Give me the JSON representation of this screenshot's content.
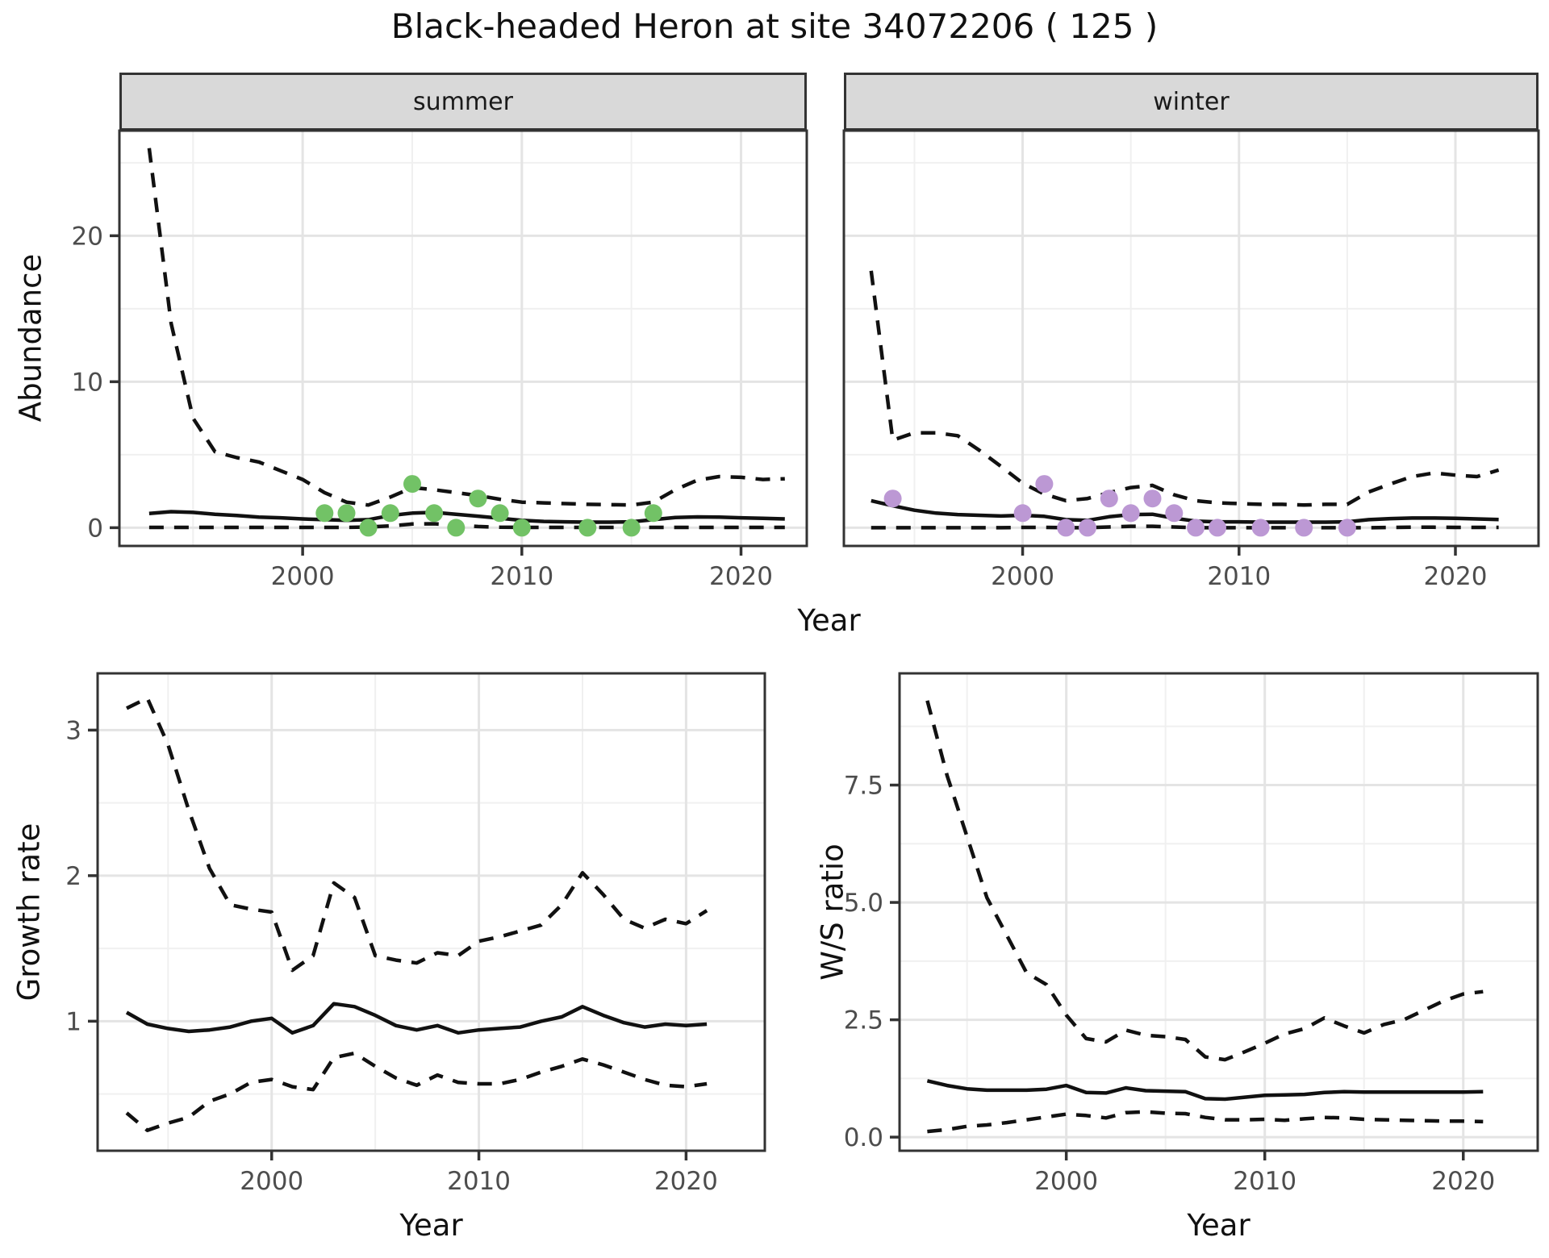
{
  "title": "Black-headed Heron at site 34072206 ( 125 )",
  "axis_labels": {
    "x": "Year",
    "y_abundance": "Abundance",
    "y_growth": "Growth rate",
    "y_ws": "W/S ratio"
  },
  "facets": {
    "summer": "summer",
    "winter": "winter"
  },
  "colors": {
    "summer_points": "#72c266",
    "winter_points": "#bc98d4",
    "line": "#111111",
    "grid_major": "#e4e4e4",
    "grid_minor": "#f0f0f0",
    "panel_border": "#333333",
    "strip_fill": "#d9d9d9",
    "tick_label": "#4d4d4d"
  },
  "chart_data": [
    {
      "id": "abundance-summer",
      "type": "line",
      "facet": "summer",
      "xlabel": "Year",
      "ylabel": "Abundance",
      "xlim": [
        1991.64,
        2023.0
      ],
      "ylim": [
        -1.25,
        27.2
      ],
      "x_ticks": [
        2000,
        2010,
        2020
      ],
      "x_tick_labels": [
        "2000",
        "2010",
        "2020"
      ],
      "x_minor": [
        1995,
        2005,
        2015
      ],
      "y_ticks": [
        0,
        10,
        20
      ],
      "y_tick_labels": [
        "0",
        "10",
        "20"
      ],
      "y_minor": [
        5,
        15,
        25
      ],
      "show_y_axis": true,
      "years": [
        1993,
        1994,
        1995,
        1996,
        1997,
        1998,
        1999,
        2000,
        2001,
        2002,
        2003,
        2004,
        2005,
        2006,
        2007,
        2008,
        2009,
        2010,
        2011,
        2012,
        2013,
        2014,
        2015,
        2016,
        2017,
        2018,
        2019,
        2020,
        2021,
        2022
      ],
      "series": [
        {
          "name": "upper-95ci",
          "style": "dashed",
          "values": [
            26.0,
            14.0,
            7.5,
            5.2,
            4.8,
            4.5,
            3.9,
            3.3,
            2.4,
            1.75,
            1.55,
            2.1,
            2.75,
            2.6,
            2.4,
            2.2,
            1.95,
            1.75,
            1.7,
            1.65,
            1.6,
            1.58,
            1.55,
            1.75,
            2.6,
            3.25,
            3.5,
            3.45,
            3.3,
            3.35
          ]
        },
        {
          "name": "lower-95ci",
          "style": "dashed",
          "values": [
            0.02,
            0.02,
            0.02,
            0.02,
            0.02,
            0.02,
            0.02,
            0.02,
            0.02,
            0.02,
            0.05,
            0.12,
            0.25,
            0.27,
            0.18,
            0.08,
            0.03,
            0.02,
            0.02,
            0.02,
            0.02,
            0.02,
            0.02,
            0.02,
            0.02,
            0.02,
            0.02,
            0.02,
            0.02,
            0.02
          ]
        },
        {
          "name": "modelled-index",
          "style": "solid",
          "values": [
            0.97,
            1.1,
            1.05,
            0.92,
            0.83,
            0.73,
            0.68,
            0.6,
            0.55,
            0.5,
            0.55,
            0.83,
            1.0,
            1.05,
            0.92,
            0.79,
            0.65,
            0.5,
            0.43,
            0.4,
            0.38,
            0.38,
            0.4,
            0.55,
            0.7,
            0.74,
            0.72,
            0.68,
            0.64,
            0.6
          ]
        }
      ],
      "points": {
        "name": "observed-counts-summer",
        "color_key": "summer_points",
        "x": [
          2001,
          2002,
          2003,
          2004,
          2005,
          2006,
          2007,
          2008,
          2009,
          2010,
          2013,
          2015,
          2016
        ],
        "y": [
          1,
          1,
          0,
          1,
          3,
          1,
          0,
          2,
          1,
          0,
          0,
          0,
          1
        ]
      }
    },
    {
      "id": "abundance-winter",
      "type": "line",
      "facet": "winter",
      "xlabel": "Year",
      "ylabel": "",
      "xlim": [
        1991.74,
        2023.84
      ],
      "ylim": [
        -1.25,
        27.2
      ],
      "x_ticks": [
        2000,
        2010,
        2020
      ],
      "x_tick_labels": [
        "2000",
        "2010",
        "2020"
      ],
      "x_minor": [
        1995,
        2005,
        2015
      ],
      "y_ticks": [
        0,
        10,
        20
      ],
      "y_tick_labels": [
        "0",
        "10",
        "20"
      ],
      "y_minor": [
        5,
        15,
        25
      ],
      "show_y_axis": false,
      "years": [
        1993,
        1994,
        1995,
        1996,
        1997,
        1998,
        1999,
        2000,
        2001,
        2002,
        2003,
        2004,
        2005,
        2006,
        2007,
        2008,
        2009,
        2010,
        2011,
        2012,
        2013,
        2014,
        2015,
        2016,
        2017,
        2018,
        2019,
        2020,
        2021,
        2022
      ],
      "series": [
        {
          "name": "upper-95ci",
          "style": "dashed",
          "values": [
            17.6,
            6.0,
            6.5,
            6.5,
            6.3,
            5.3,
            4.2,
            3.05,
            2.3,
            1.85,
            2.0,
            2.4,
            2.75,
            2.9,
            2.25,
            1.85,
            1.7,
            1.65,
            1.6,
            1.6,
            1.55,
            1.6,
            1.6,
            2.45,
            3.0,
            3.5,
            3.75,
            3.6,
            3.5,
            3.95
          ]
        },
        {
          "name": "lower-95ci",
          "style": "dashed",
          "values": [
            0.0,
            0.0,
            0.0,
            0.0,
            0.0,
            0.0,
            0.0,
            0.02,
            0.02,
            0.0,
            0.0,
            0.05,
            0.1,
            0.1,
            0.05,
            0.0,
            0.0,
            0.0,
            0.0,
            0.0,
            0.0,
            0.0,
            0.0,
            0.0,
            0.02,
            0.03,
            0.03,
            0.02,
            0.02,
            0.02
          ]
        },
        {
          "name": "modelled-index",
          "style": "solid",
          "values": [
            1.85,
            1.5,
            1.2,
            1.0,
            0.9,
            0.85,
            0.8,
            0.85,
            0.78,
            0.55,
            0.5,
            0.75,
            0.9,
            0.92,
            0.65,
            0.45,
            0.4,
            0.4,
            0.38,
            0.38,
            0.38,
            0.38,
            0.4,
            0.55,
            0.62,
            0.66,
            0.66,
            0.64,
            0.6,
            0.56
          ]
        }
      ],
      "points": {
        "name": "observed-counts-winter",
        "color_key": "winter_points",
        "x": [
          1994,
          2000,
          2001,
          2002,
          2003,
          2004,
          2005,
          2006,
          2007,
          2008,
          2009,
          2011,
          2013,
          2015
        ],
        "y": [
          2,
          1,
          3,
          0,
          0,
          2,
          1,
          2,
          1,
          0,
          0,
          0,
          0,
          0
        ]
      }
    },
    {
      "id": "growth-rate",
      "type": "line",
      "facet": "",
      "xlabel": "Year",
      "ylabel": "Growth rate",
      "xlim": [
        1991.6,
        2023.8
      ],
      "ylim": [
        0.11,
        3.39
      ],
      "x_ticks": [
        2000,
        2010,
        2020
      ],
      "x_tick_labels": [
        "2000",
        "2010",
        "2020"
      ],
      "x_minor": [
        1995,
        2005,
        2015
      ],
      "y_ticks": [
        1,
        2,
        3
      ],
      "y_tick_labels": [
        "1",
        "2",
        "3"
      ],
      "y_minor": [
        0.5,
        1.5,
        2.5
      ],
      "show_y_axis": true,
      "years": [
        1993,
        1994,
        1995,
        1996,
        1997,
        1998,
        1999,
        2000,
        2001,
        2002,
        2003,
        2004,
        2005,
        2006,
        2007,
        2008,
        2009,
        2010,
        2011,
        2012,
        2013,
        2014,
        2015,
        2016,
        2017,
        2018,
        2019,
        2020,
        2021
      ],
      "series": [
        {
          "name": "upper-95ci",
          "style": "dashed",
          "values": [
            3.15,
            3.22,
            2.9,
            2.45,
            2.05,
            1.8,
            1.77,
            1.75,
            1.35,
            1.45,
            1.95,
            1.85,
            1.45,
            1.42,
            1.4,
            1.47,
            1.45,
            1.55,
            1.58,
            1.62,
            1.66,
            1.8,
            2.02,
            1.87,
            1.7,
            1.64,
            1.7,
            1.67,
            1.76
          ]
        },
        {
          "name": "lower-95ci",
          "style": "dashed",
          "values": [
            0.37,
            0.25,
            0.3,
            0.34,
            0.45,
            0.5,
            0.58,
            0.6,
            0.55,
            0.53,
            0.75,
            0.78,
            0.69,
            0.61,
            0.56,
            0.63,
            0.58,
            0.57,
            0.57,
            0.6,
            0.65,
            0.69,
            0.74,
            0.7,
            0.65,
            0.6,
            0.56,
            0.55,
            0.57
          ]
        },
        {
          "name": "median-growth-rate",
          "style": "solid",
          "values": [
            1.06,
            0.98,
            0.95,
            0.93,
            0.94,
            0.96,
            1.0,
            1.02,
            0.92,
            0.97,
            1.12,
            1.1,
            1.04,
            0.97,
            0.94,
            0.97,
            0.92,
            0.94,
            0.95,
            0.96,
            1.0,
            1.03,
            1.1,
            1.04,
            0.99,
            0.96,
            0.98,
            0.97,
            0.98
          ]
        }
      ],
      "points": null
    },
    {
      "id": "ws-ratio",
      "type": "line",
      "facet": "",
      "xlabel": "Year",
      "ylabel": "W/S ratio",
      "xlim": [
        1991.6,
        2023.75
      ],
      "ylim": [
        -0.29,
        9.88
      ],
      "x_ticks": [
        2000,
        2010,
        2020
      ],
      "x_tick_labels": [
        "2000",
        "2010",
        "2020"
      ],
      "x_minor": [
        1995,
        2005,
        2015
      ],
      "y_ticks": [
        0.0,
        2.5,
        5.0,
        7.5
      ],
      "y_tick_labels": [
        "0.0",
        "2.5",
        "5.0",
        "7.5"
      ],
      "y_minor": [
        1.25,
        3.75,
        6.25,
        8.75
      ],
      "show_y_axis": true,
      "years": [
        1993,
        1994,
        1995,
        1996,
        1997,
        1998,
        1999,
        2000,
        2001,
        2002,
        2003,
        2004,
        2005,
        2006,
        2007,
        2008,
        2009,
        2010,
        2011,
        2012,
        2013,
        2014,
        2015,
        2016,
        2017,
        2018,
        2019,
        2020,
        2021
      ],
      "series": [
        {
          "name": "upper-95ci",
          "style": "dashed",
          "values": [
            9.3,
            7.7,
            6.4,
            5.1,
            4.3,
            3.5,
            3.25,
            2.6,
            2.1,
            2.03,
            2.28,
            2.17,
            2.14,
            2.08,
            1.71,
            1.65,
            1.82,
            2.0,
            2.2,
            2.31,
            2.54,
            2.37,
            2.22,
            2.4,
            2.5,
            2.7,
            2.9,
            3.05,
            3.1
          ]
        },
        {
          "name": "lower-95ci",
          "style": "dashed",
          "values": [
            0.12,
            0.16,
            0.23,
            0.26,
            0.31,
            0.37,
            0.43,
            0.49,
            0.46,
            0.41,
            0.52,
            0.54,
            0.51,
            0.5,
            0.42,
            0.37,
            0.37,
            0.38,
            0.36,
            0.39,
            0.42,
            0.41,
            0.38,
            0.37,
            0.36,
            0.35,
            0.34,
            0.34,
            0.33
          ]
        },
        {
          "name": "median-ws-ratio",
          "style": "solid",
          "values": [
            1.2,
            1.1,
            1.03,
            1.0,
            1.0,
            1.0,
            1.02,
            1.1,
            0.95,
            0.94,
            1.05,
            0.99,
            0.98,
            0.97,
            0.82,
            0.81,
            0.85,
            0.89,
            0.9,
            0.91,
            0.95,
            0.97,
            0.96,
            0.96,
            0.96,
            0.96,
            0.96,
            0.96,
            0.97
          ]
        }
      ],
      "points": null
    }
  ]
}
